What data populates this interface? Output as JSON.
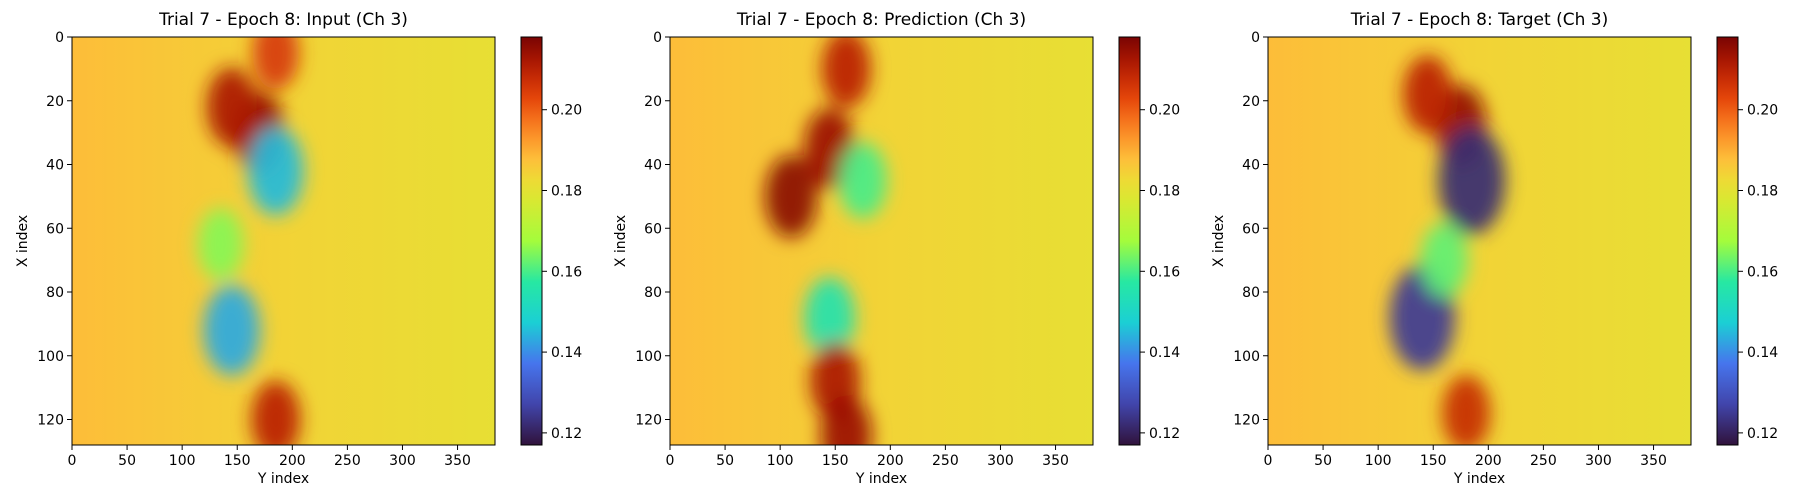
{
  "chart_data": [
    {
      "type": "heatmap",
      "title": "Trial 7 - Epoch 8: Input (Ch 3)",
      "xlabel": "Y index",
      "ylabel": "X index",
      "xlim": [
        0,
        384
      ],
      "ylim": [
        128,
        0
      ],
      "xticks": [
        "0",
        "50",
        "100",
        "150",
        "200",
        "250",
        "300",
        "350"
      ],
      "yticks": [
        "0",
        "20",
        "40",
        "60",
        "80",
        "100",
        "120"
      ],
      "colorbar": {
        "vmin": 0.117,
        "vmax": 0.218,
        "ticks": [
          "0.12",
          "0.14",
          "0.16",
          "0.18",
          "0.20"
        ]
      },
      "features": [
        {
          "x": 170,
          "y": 30,
          "value": 0.215
        },
        {
          "x": 145,
          "y": 22,
          "value": 0.212
        },
        {
          "x": 185,
          "y": 5,
          "value": 0.205
        },
        {
          "x": 185,
          "y": 42,
          "value": 0.145
        },
        {
          "x": 145,
          "y": 92,
          "value": 0.143
        },
        {
          "x": 135,
          "y": 65,
          "value": 0.165
        },
        {
          "x": 185,
          "y": 120,
          "value": 0.21
        }
      ]
    },
    {
      "type": "heatmap",
      "title": "Trial 7 - Epoch 8: Prediction (Ch 3)",
      "xlabel": "Y index",
      "ylabel": "X index",
      "xlim": [
        0,
        384
      ],
      "ylim": [
        128,
        0
      ],
      "xticks": [
        "0",
        "50",
        "100",
        "150",
        "200",
        "250",
        "300",
        "350"
      ],
      "yticks": [
        "0",
        "20",
        "40",
        "60",
        "80",
        "100",
        "120"
      ],
      "colorbar": {
        "vmin": 0.117,
        "vmax": 0.218,
        "ticks": [
          "0.12",
          "0.14",
          "0.16",
          "0.18",
          "0.20"
        ]
      },
      "features": [
        {
          "x": 110,
          "y": 50,
          "value": 0.216
        },
        {
          "x": 145,
          "y": 35,
          "value": 0.214
        },
        {
          "x": 160,
          "y": 10,
          "value": 0.21
        },
        {
          "x": 175,
          "y": 45,
          "value": 0.16
        },
        {
          "x": 145,
          "y": 88,
          "value": 0.155
        },
        {
          "x": 150,
          "y": 108,
          "value": 0.212
        },
        {
          "x": 160,
          "y": 125,
          "value": 0.214
        }
      ]
    },
    {
      "type": "heatmap",
      "title": "Trial 7 - Epoch 8: Target (Ch 3)",
      "xlabel": "Y index",
      "ylabel": "X index",
      "xlim": [
        0,
        384
      ],
      "ylim": [
        128,
        0
      ],
      "xticks": [
        "0",
        "50",
        "100",
        "150",
        "200",
        "250",
        "300",
        "350"
      ],
      "yticks": [
        "0",
        "20",
        "40",
        "60",
        "80",
        "100",
        "120"
      ],
      "colorbar": {
        "vmin": 0.117,
        "vmax": 0.218,
        "ticks": [
          "0.12",
          "0.14",
          "0.16",
          "0.18",
          "0.20"
        ]
      },
      "features": [
        {
          "x": 175,
          "y": 28,
          "value": 0.215
        },
        {
          "x": 145,
          "y": 18,
          "value": 0.21
        },
        {
          "x": 185,
          "y": 45,
          "value": 0.122
        },
        {
          "x": 140,
          "y": 88,
          "value": 0.125
        },
        {
          "x": 160,
          "y": 70,
          "value": 0.162
        },
        {
          "x": 180,
          "y": 118,
          "value": 0.208
        }
      ]
    }
  ]
}
